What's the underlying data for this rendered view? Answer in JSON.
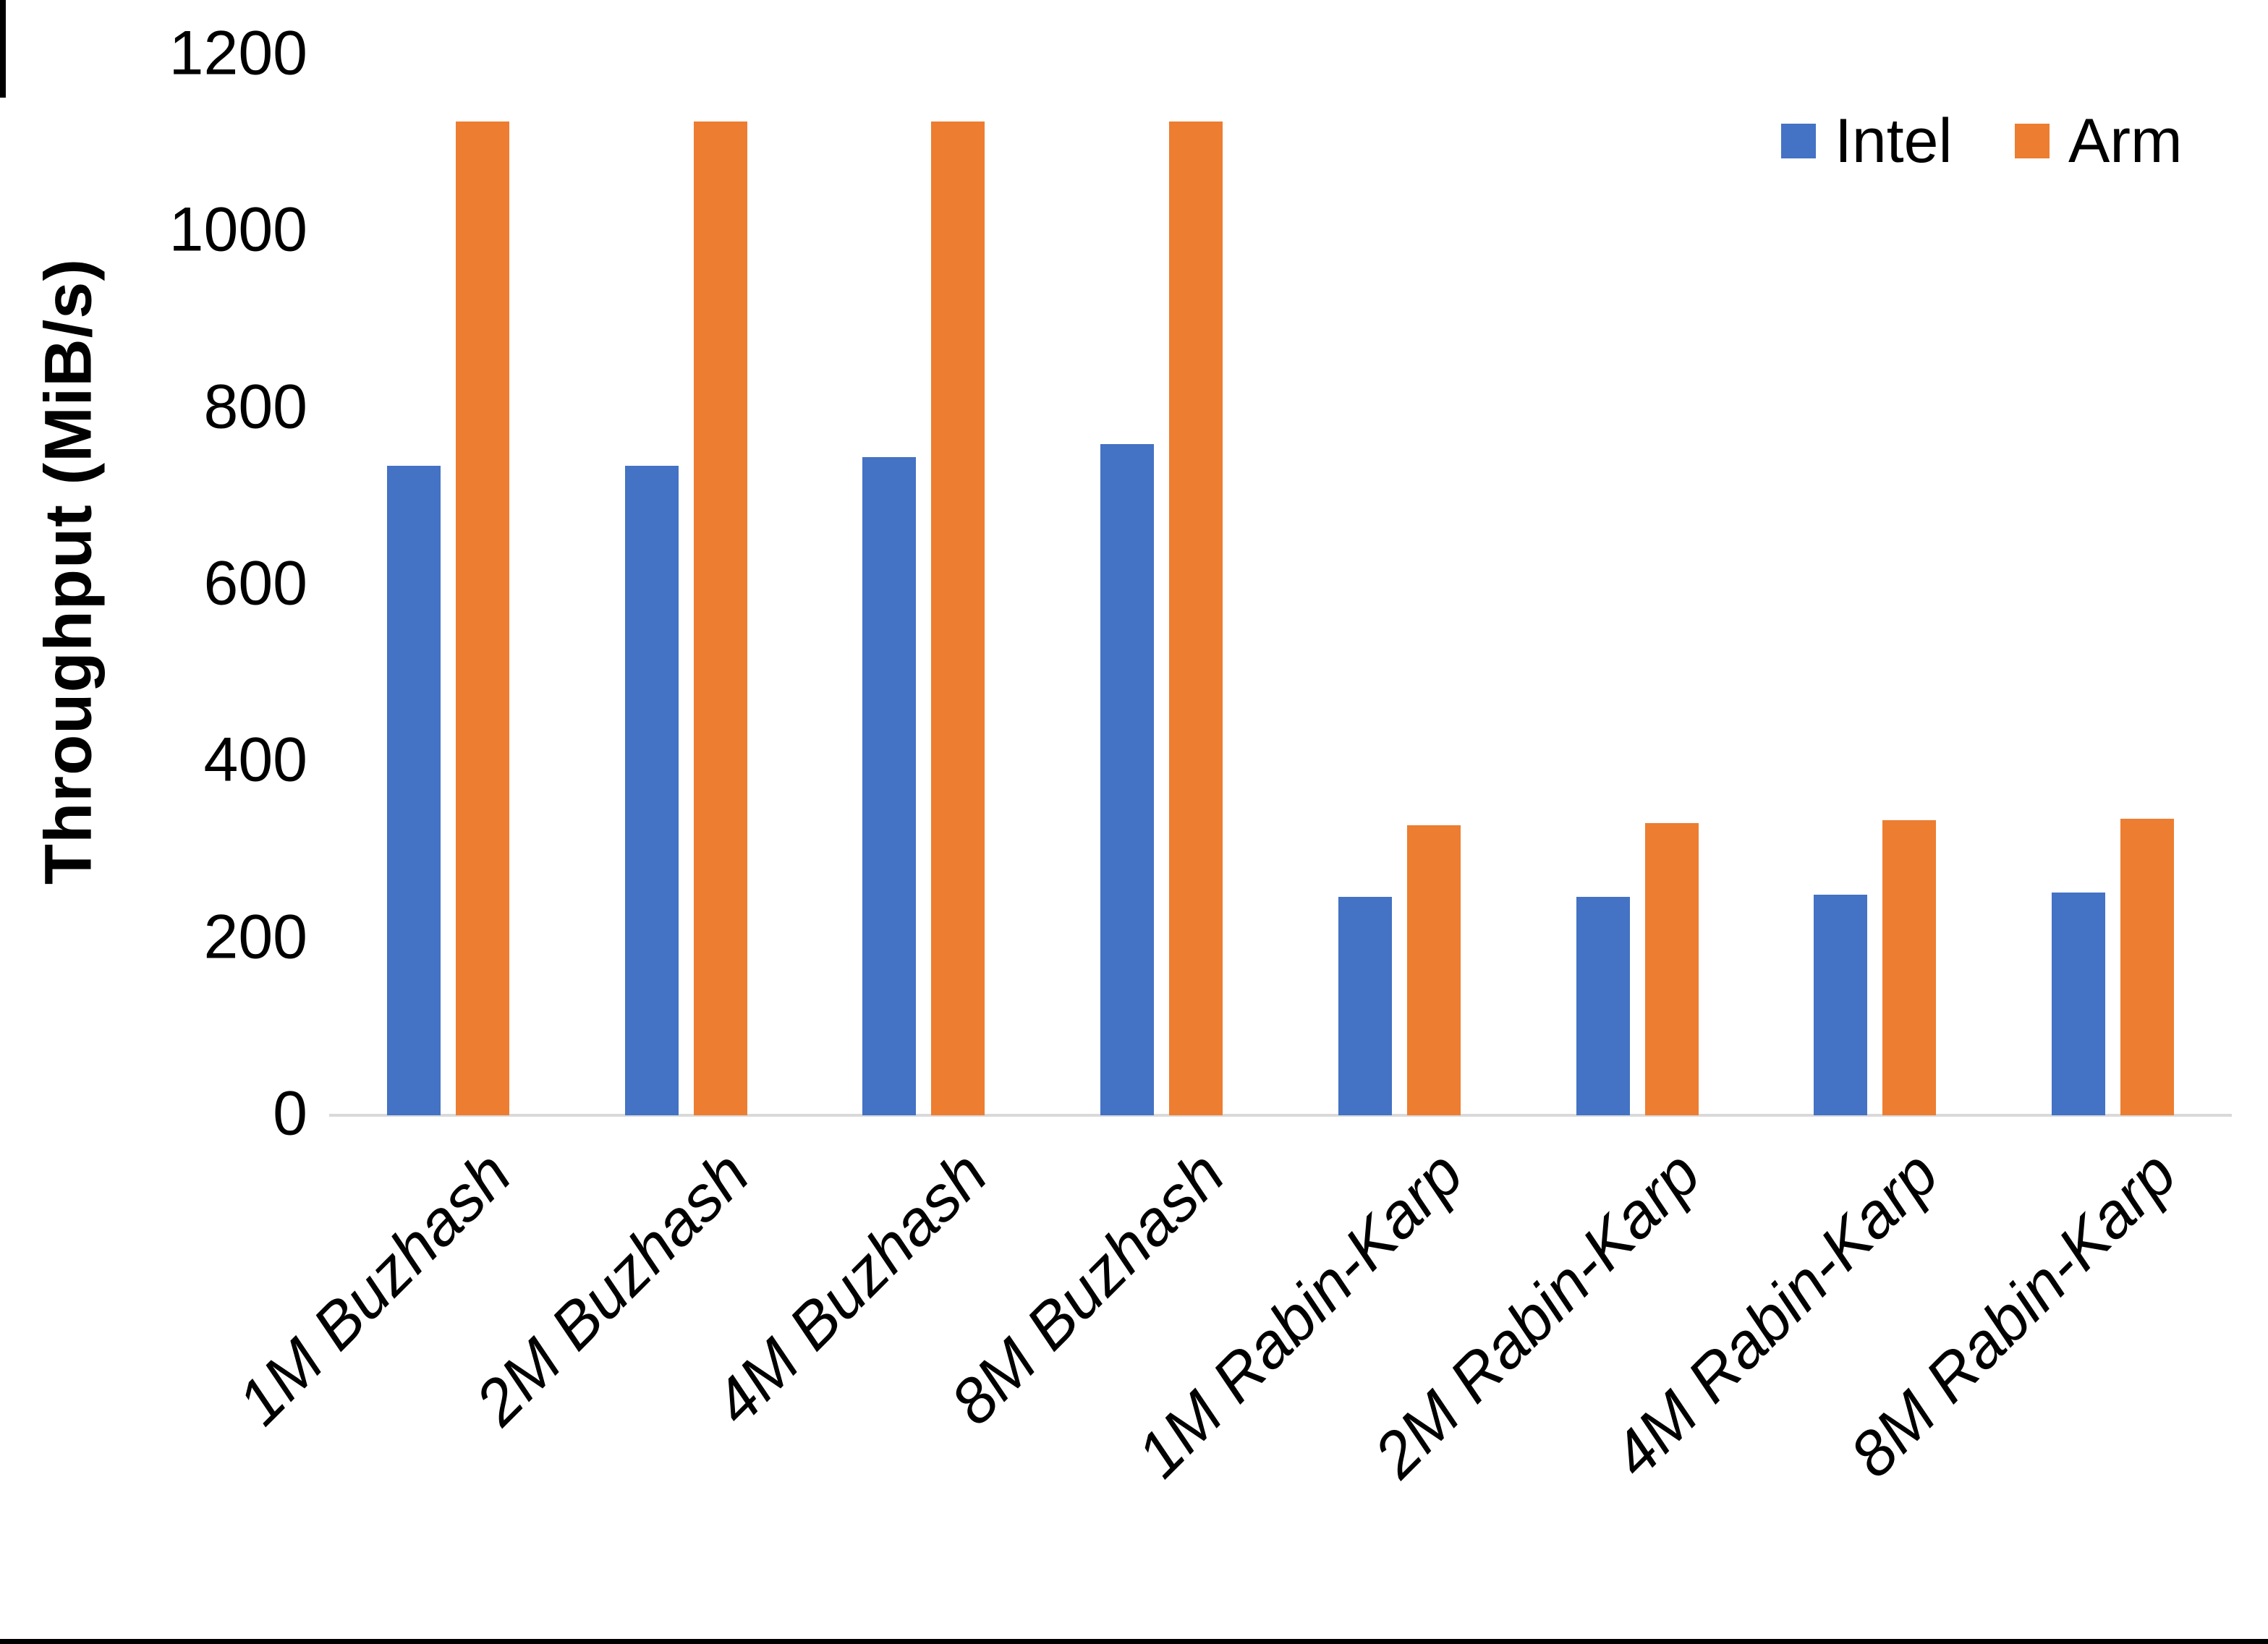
{
  "chart_data": {
    "type": "bar",
    "categories": [
      "1M Buzhash",
      "2M Buzhash",
      "4M Buzhash",
      "8M Buzhash",
      "1M Rabin-Karp",
      "2M Rabin-Karp",
      "4M Rabin-Karp",
      "8M Rabin-Karp"
    ],
    "series": [
      {
        "name": "Intel",
        "color": "#4472C4",
        "values": [
          735,
          735,
          745,
          760,
          247,
          247,
          250,
          252
        ]
      },
      {
        "name": "Arm",
        "color": "#ED7D31",
        "values": [
          1125,
          1125,
          1125,
          1125,
          328,
          331,
          334,
          336
        ]
      }
    ],
    "title": "",
    "xlabel": "",
    "ylabel": "Throughput (MiB/s)",
    "ylim": [
      0,
      1200
    ],
    "ytick_step": 200,
    "y_tick_labels": [
      "0",
      "200",
      "400",
      "600",
      "800",
      "1000",
      "1200"
    ],
    "grid": false,
    "legend_position": "top-right",
    "axis_line_color": "#d9d9d9",
    "text_color": "#000000",
    "background_color": "#ffffff"
  }
}
